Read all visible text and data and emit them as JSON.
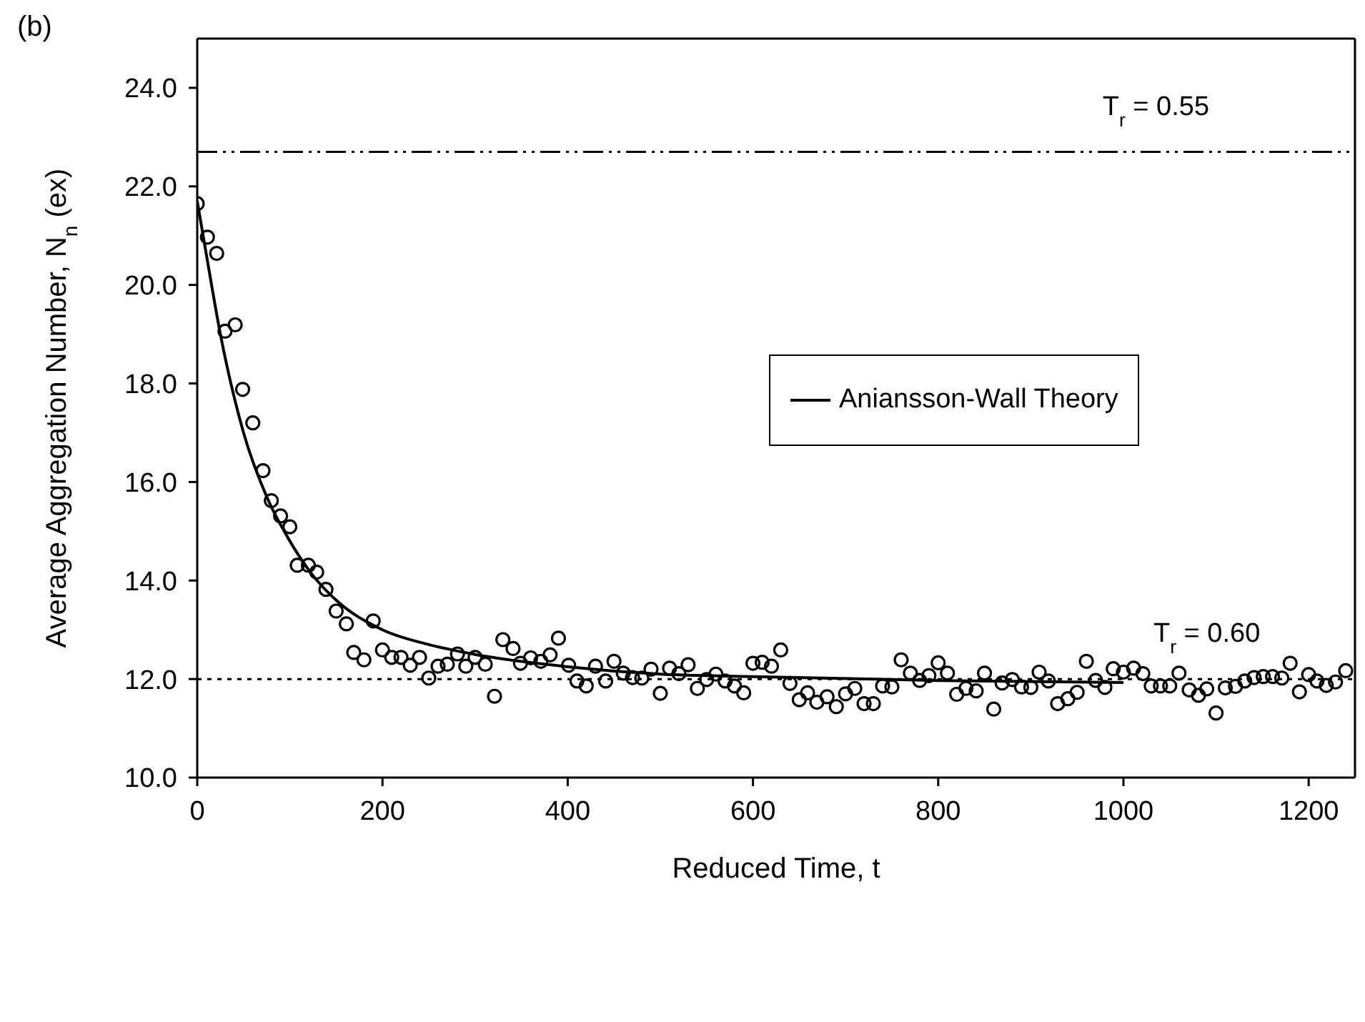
{
  "chart_data": {
    "type": "scatter",
    "xlabel": "Reduced Time, t",
    "ylabel": "Average Aggregation Number, N$_{n}$ (ex)",
    "annotations": [
      "(b)",
      {
        "text": "T$_{r}$ = 0.55",
        "x": 1035,
        "y": 22.7
      },
      {
        "text": "T$_{r}$ = 0.60",
        "x": 1090,
        "y": 12.0
      }
    ],
    "xlim": [
      0,
      1250
    ],
    "xticks": [
      0,
      200,
      400,
      600,
      800,
      1000,
      1200
    ],
    "ylim": [
      10,
      25
    ],
    "yticks": [
      {
        "value": 10,
        "label": "10.0"
      },
      {
        "value": 12,
        "label": "12.0"
      },
      {
        "value": 14,
        "label": "14.0"
      },
      {
        "value": 16,
        "label": "16.0"
      },
      {
        "value": 18,
        "label": "18.0"
      },
      {
        "value": 20,
        "label": "20.0"
      },
      {
        "value": 22,
        "label": "22.0"
      },
      {
        "value": 24,
        "label": "24.0"
      }
    ],
    "grid": false,
    "legend": "right",
    "ref_lines": [
      {
        "axis": "y",
        "value": 22.7,
        "line_style": "dashdot",
        "color": "#000000"
      },
      {
        "axis": "y",
        "value": 12.0,
        "line_style": "dotted",
        "color": "#000000"
      }
    ],
    "series": [
      {
        "color": "#000000",
        "marker": "circle",
        "x": [
          0,
          11,
          21,
          30,
          41,
          49,
          60,
          71,
          80,
          90,
          100,
          108,
          120,
          129,
          139,
          150,
          161,
          169,
          180,
          190,
          200,
          210,
          220,
          230,
          240,
          250,
          260,
          270,
          281,
          290,
          300,
          311,
          321,
          330,
          341,
          349,
          360,
          371,
          381,
          390,
          401,
          410,
          420,
          430,
          441,
          450,
          460,
          470,
          480,
          490,
          500,
          510,
          520,
          530,
          540,
          550,
          560,
          570,
          580,
          590,
          600,
          610,
          620,
          630,
          640,
          650,
          659,
          669,
          680,
          690,
          700,
          710,
          720,
          730,
          740,
          750,
          760,
          770,
          780,
          790,
          800,
          810,
          820,
          830,
          841,
          850,
          860,
          869,
          880,
          890,
          900,
          909,
          919,
          929,
          940,
          950,
          960,
          970,
          980,
          989,
          1000,
          1011,
          1021,
          1030,
          1040,
          1050,
          1060,
          1071,
          1081,
          1090,
          1100,
          1110,
          1121,
          1131,
          1141,
          1151,
          1161,
          1171,
          1180,
          1190,
          1200,
          1209,
          1219,
          1229,
          1240
        ],
        "values": [
          21.65,
          20.97,
          20.64,
          19.06,
          19.19,
          17.88,
          17.2,
          16.23,
          15.62,
          15.31,
          15.09,
          14.31,
          14.31,
          14.17,
          13.82,
          13.38,
          13.12,
          12.54,
          12.39,
          13.18,
          12.59,
          12.44,
          12.44,
          12.28,
          12.44,
          12.02,
          12.26,
          12.3,
          12.51,
          12.26,
          12.44,
          12.3,
          11.65,
          12.8,
          12.62,
          12.32,
          12.43,
          12.36,
          12.49,
          12.83,
          12.28,
          11.96,
          11.86,
          12.26,
          11.96,
          12.36,
          12.12,
          12.03,
          12.02,
          12.2,
          11.71,
          12.22,
          12.11,
          12.29,
          11.81,
          11.99,
          12.1,
          11.96,
          11.86,
          11.72,
          12.32,
          12.34,
          12.26,
          12.59,
          11.91,
          11.58,
          11.72,
          11.53,
          11.64,
          11.44,
          11.7,
          11.81,
          11.5,
          11.5,
          11.86,
          11.84,
          12.39,
          12.12,
          11.97,
          12.07,
          12.33,
          12.12,
          11.69,
          11.81,
          11.76,
          12.12,
          11.39,
          11.92,
          11.99,
          11.84,
          11.83,
          12.14,
          11.96,
          11.5,
          11.6,
          11.73,
          12.36,
          11.97,
          11.83,
          12.21,
          12.14,
          12.22,
          12.11,
          11.86,
          11.86,
          11.86,
          12.12,
          11.78,
          11.67,
          11.8,
          11.31,
          11.82,
          11.85,
          11.96,
          12.03,
          12.05,
          12.05,
          12.02,
          12.32,
          11.74,
          12.09,
          11.96,
          11.87,
          11.94,
          12.17
        ]
      },
      {
        "type": "line",
        "name": "Aniansson-Wall Theory",
        "color": "#000000",
        "marker": "none",
        "line_style": "solid",
        "x": [
          0,
          10,
          25,
          50,
          75,
          100,
          125,
          150,
          200,
          250,
          300,
          400,
          500,
          600,
          800,
          1000
        ],
        "values": [
          21.7,
          20.6,
          19.0,
          17.0,
          15.7,
          14.8,
          14.1,
          13.6,
          13.0,
          12.7,
          12.5,
          12.25,
          12.1,
          12.05,
          11.97,
          11.93
        ]
      }
    ]
  }
}
